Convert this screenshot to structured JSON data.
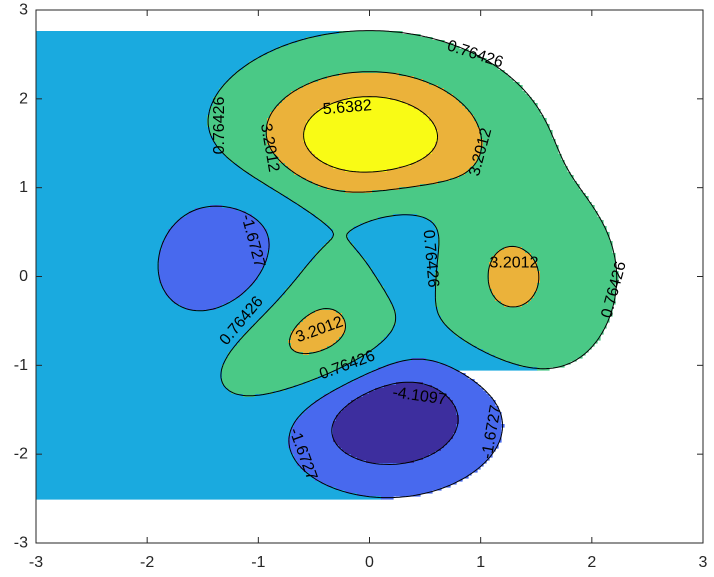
{
  "chart_data": {
    "type": "contour",
    "function": "peaks",
    "xlim": [
      -3,
      3
    ],
    "ylim": [
      -3,
      3
    ],
    "x_ticks": [
      "-3",
      "-2",
      "-1",
      "0",
      "1",
      "2",
      "3"
    ],
    "y_ticks": [
      "3",
      "2",
      "1",
      "0",
      "-1",
      "-2",
      "-3"
    ],
    "levels": [
      -4.1097,
      -1.6727,
      0.76426,
      3.2012,
      5.6382
    ],
    "colors": {
      "background": "#1aaadf",
      "below_-4.1097": "#3d2e9e",
      "-4.1097_to_-1.6727": "#4869ee",
      "0.76426_to_3.2012": "#4ac986",
      "3.2012_to_5.6382": "#ebb23a",
      "above_5.6382": "#f9fb15"
    },
    "contour_labels": [
      {
        "text": "0.76426",
        "x": 0.95,
        "y": 2.5,
        "angle": 18
      },
      {
        "text": "0.76426",
        "x": -1.35,
        "y": 1.7,
        "angle": -90
      },
      {
        "text": "3.2012",
        "x": -0.9,
        "y": 1.45,
        "angle": 80
      },
      {
        "text": "5.6382",
        "x": -0.2,
        "y": 1.9,
        "angle": -5
      },
      {
        "text": "3.2012",
        "x": 1.0,
        "y": 1.4,
        "angle": -75
      },
      {
        "text": "-1.6727",
        "x": -1.05,
        "y": 0.4,
        "angle": 75
      },
      {
        "text": "0.76426",
        "x": 0.55,
        "y": 0.2,
        "angle": 85
      },
      {
        "text": "3.2012",
        "x": 1.3,
        "y": 0.15,
        "angle": 0
      },
      {
        "text": "0.76426",
        "x": 2.2,
        "y": -0.15,
        "angle": -75
      },
      {
        "text": "0.76426",
        "x": -1.15,
        "y": -0.5,
        "angle": -50
      },
      {
        "text": "3.2012",
        "x": -0.45,
        "y": -0.6,
        "angle": -20
      },
      {
        "text": "0.76426",
        "x": -0.2,
        "y": -1.0,
        "angle": -20
      },
      {
        "text": "-4.1097",
        "x": 0.45,
        "y": -1.35,
        "angle": 8
      },
      {
        "text": "-1.6727",
        "x": -0.6,
        "y": -2.0,
        "angle": 70
      },
      {
        "text": "-1.6727",
        "x": 1.1,
        "y": -1.75,
        "angle": -80
      }
    ]
  }
}
